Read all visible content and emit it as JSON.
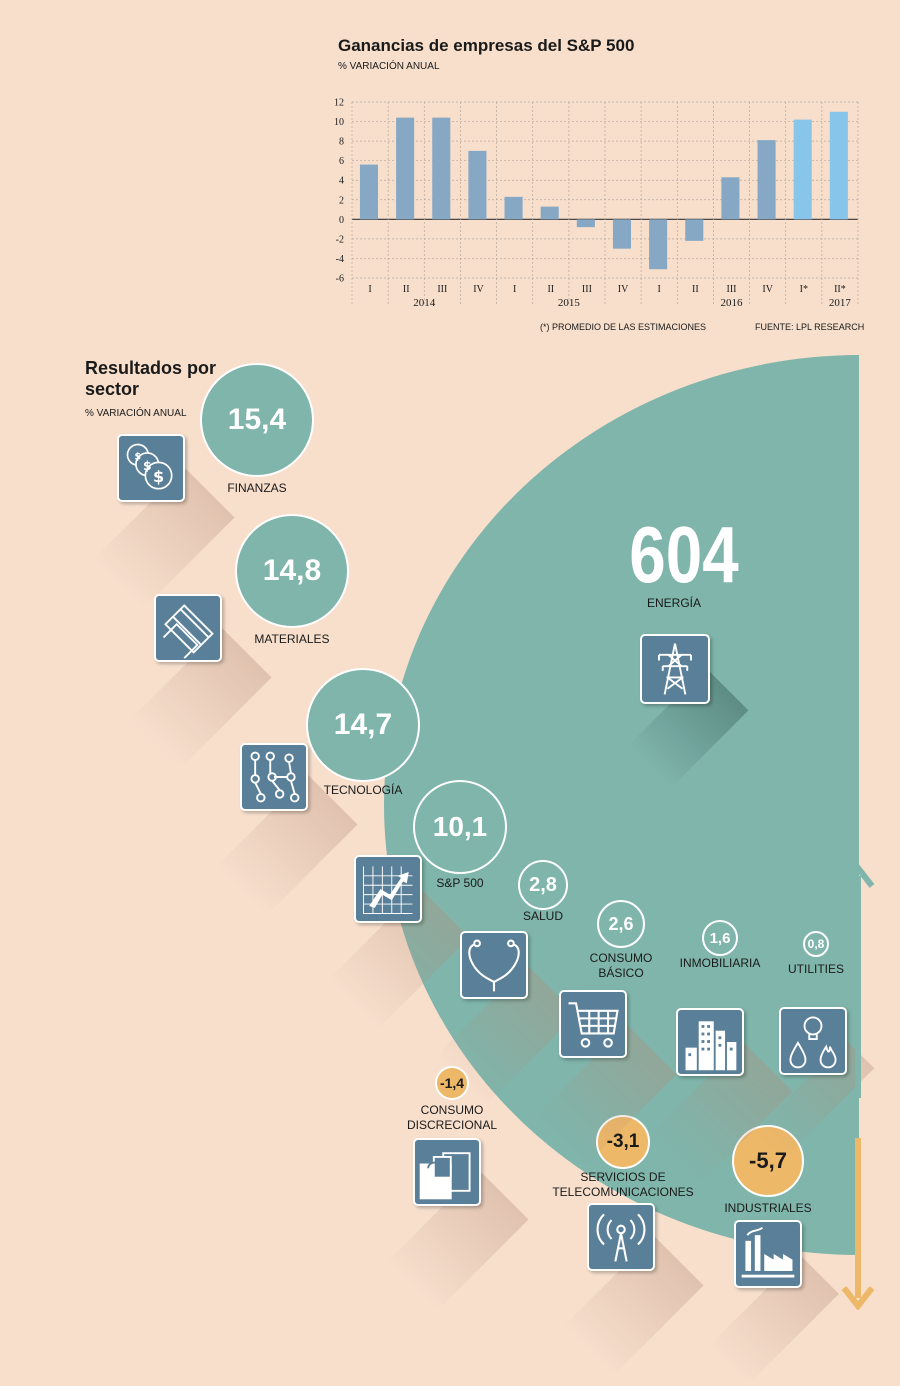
{
  "chart_data": {
    "type": "bar",
    "title": "Ganancias de empresas del S&P 500",
    "subtitle": "% VARIACIÓN ANUAL",
    "ylim": [
      -6,
      12
    ],
    "yticks": [
      12,
      10,
      8,
      6,
      4,
      2,
      0,
      -2,
      -4,
      -6
    ],
    "categories": [
      "I",
      "II",
      "III",
      "IV",
      "I",
      "II",
      "III",
      "IV",
      "I",
      "II",
      "III",
      "IV",
      "I*",
      "II*"
    ],
    "years": [
      "2014",
      "2015",
      "2016",
      "2017"
    ],
    "values": [
      5.6,
      10.4,
      10.4,
      7.0,
      2.3,
      1.3,
      -0.8,
      -3.0,
      -5.1,
      -2.2,
      4.3,
      8.1,
      10.2,
      11.0
    ],
    "estimate_flags": [
      false,
      false,
      false,
      false,
      false,
      false,
      false,
      false,
      false,
      false,
      false,
      false,
      true,
      true
    ],
    "grid": true,
    "colors": {
      "actual": "#86a8c4",
      "estimate": "#88c5ea"
    },
    "notes": {
      "estimates": "(*) PROMEDIO DE LAS ESTIMACIONES",
      "source": "FUENTE: LPL RESEARCH"
    }
  },
  "sectors": {
    "title": "Resultados por sector",
    "subtitle": "% VARIACIÓN ANUAL",
    "items": [
      {
        "name": "ENERGÍA",
        "value": "604",
        "icon": "power-tower-icon"
      },
      {
        "name": "FINANZAS",
        "value": "15,4",
        "icon": "dollar-coins-icon"
      },
      {
        "name": "MATERIALES",
        "value": "14,8",
        "icon": "steel-beams-icon"
      },
      {
        "name": "TECNOLOGÍA",
        "value": "14,7",
        "icon": "circuit-board-icon"
      },
      {
        "name": "S&P 500",
        "value": "10,1",
        "icon": "rising-chart-icon"
      },
      {
        "name": "SALUD",
        "value": "2,8",
        "icon": "stethoscope-icon"
      },
      {
        "name_lines": [
          "CONSUMO",
          "BÁSICO"
        ],
        "value": "2,6",
        "icon": "shopping-cart-icon"
      },
      {
        "name": "INMOBILIARIA",
        "value": "1,6",
        "icon": "buildings-icon"
      },
      {
        "name": "UTILITIES",
        "value": "0,8",
        "icon": "lightbulb-water-fire-icon"
      },
      {
        "name_lines": [
          "CONSUMO",
          "DISCRECIONAL"
        ],
        "value": "-1,4",
        "icon": "shopping-bags-icon"
      },
      {
        "name_lines": [
          "SERVICIOS DE",
          "TELECOMUNICACIONES"
        ],
        "value": "-3,1",
        "icon": "antenna-signal-icon"
      },
      {
        "name": "INDUSTRIALES",
        "value": "-5,7",
        "icon": "factory-icon"
      }
    ]
  },
  "colors": {
    "background": "#f7dfcc",
    "positive": "#7fb5ab",
    "negative": "#edb868",
    "icon": "#5a7f98"
  }
}
